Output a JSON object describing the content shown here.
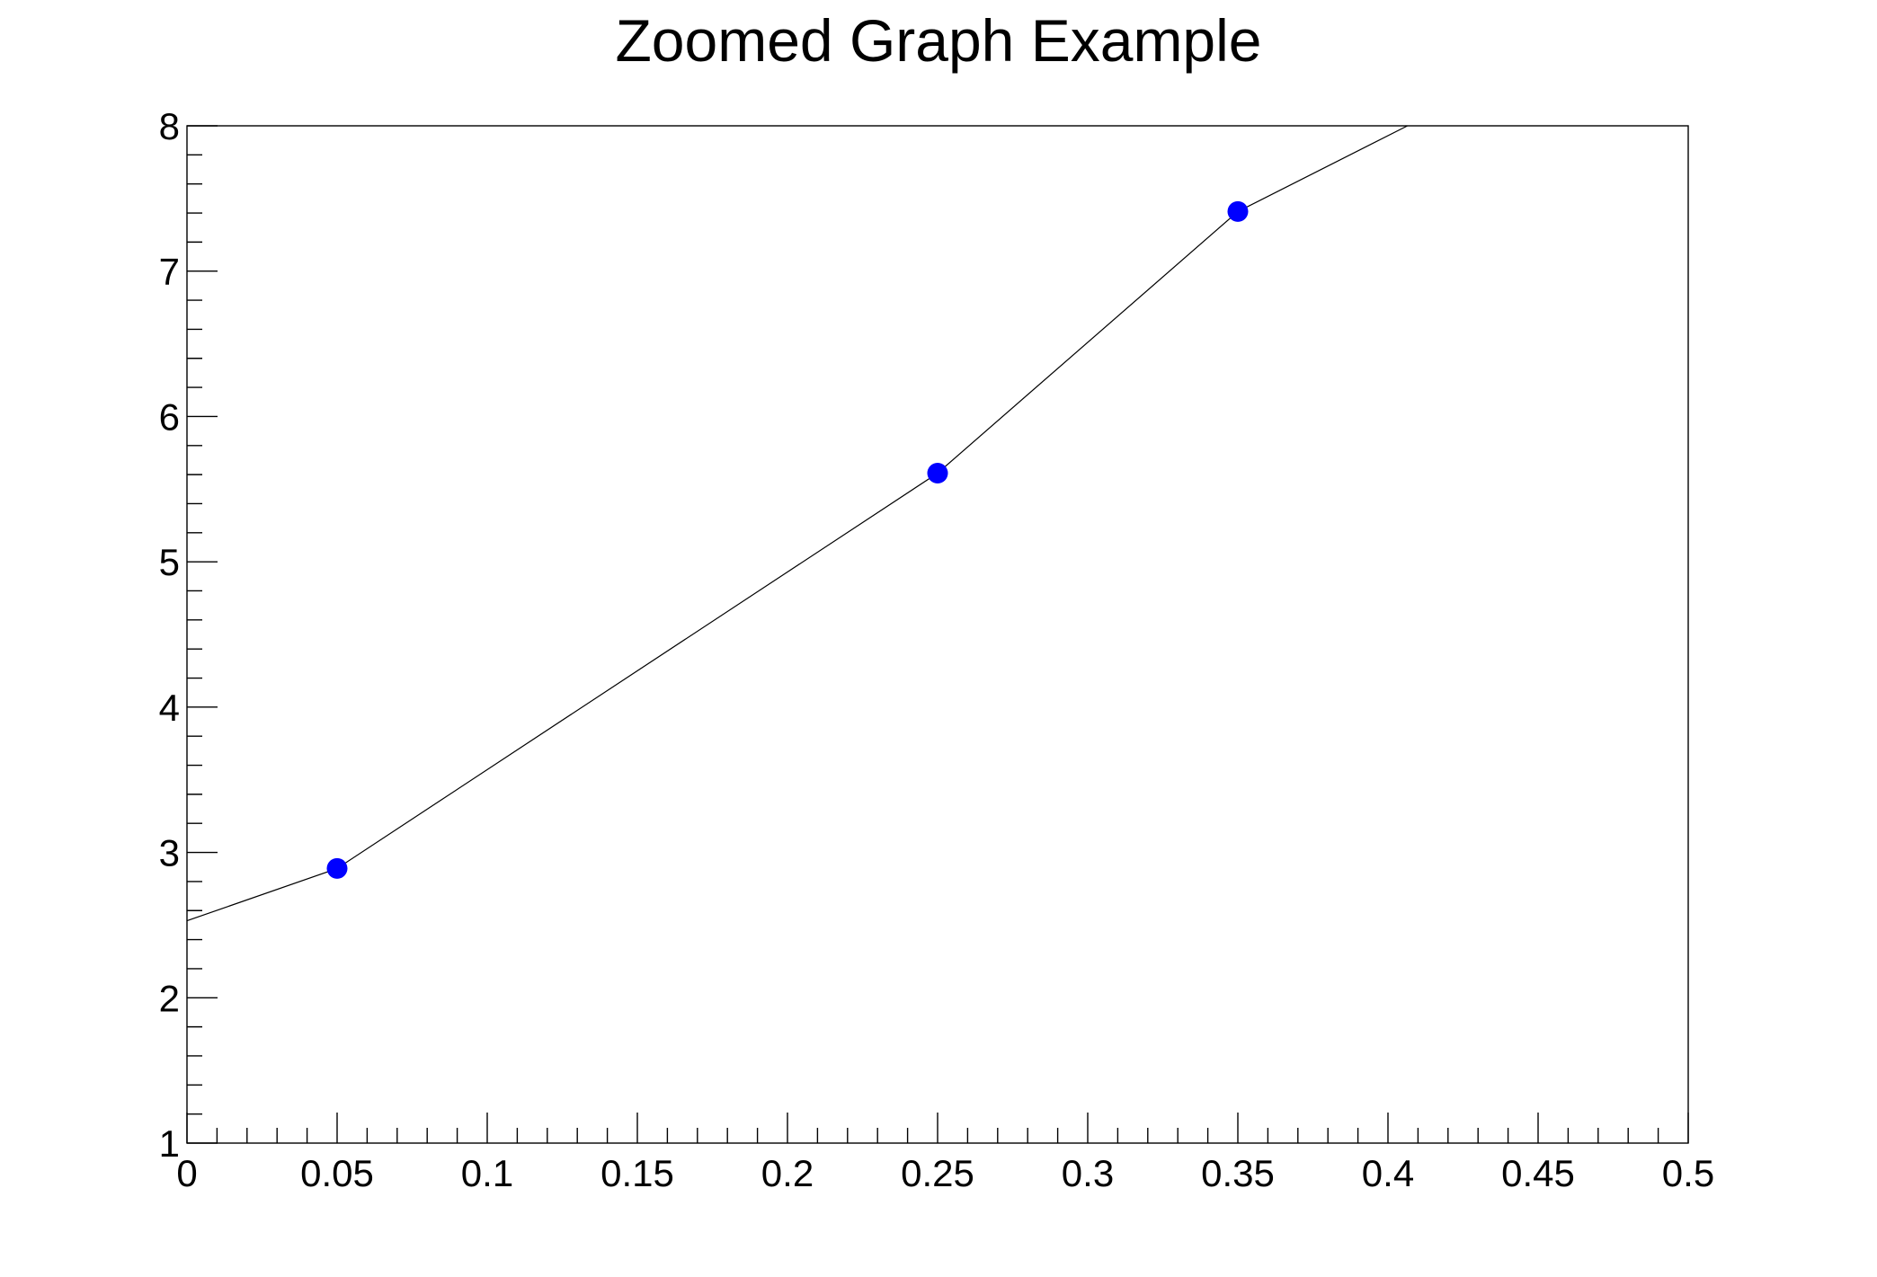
{
  "chart_data": {
    "type": "line",
    "title": "Zoomed Graph Example",
    "xlabel": "",
    "ylabel": "",
    "xlim": [
      0,
      0.5
    ],
    "ylim": [
      1,
      8
    ],
    "grid": false,
    "x_tick_labels": [
      "0",
      "0.05",
      "0.1",
      "0.15",
      "0.2",
      "0.25",
      "0.3",
      "0.35",
      "0.4",
      "0.45",
      "0.5"
    ],
    "y_tick_labels": [
      "1",
      "2",
      "3",
      "4",
      "5",
      "6",
      "7",
      "8"
    ],
    "series": [
      {
        "points": [
          {
            "x": 0.05,
            "y": 2.89
          },
          {
            "x": 0.25,
            "y": 5.61
          },
          {
            "x": 0.35,
            "y": 7.41
          }
        ],
        "line_extends_outside_range": true,
        "line_start": {
          "x": 0.0,
          "y": 2.53
        },
        "line_end": {
          "x": 0.4065,
          "y": 8.0
        }
      }
    ],
    "colors": {
      "marker": "#0000ff",
      "line": "#000000",
      "axis": "#000000",
      "background": "#ffffff"
    }
  }
}
